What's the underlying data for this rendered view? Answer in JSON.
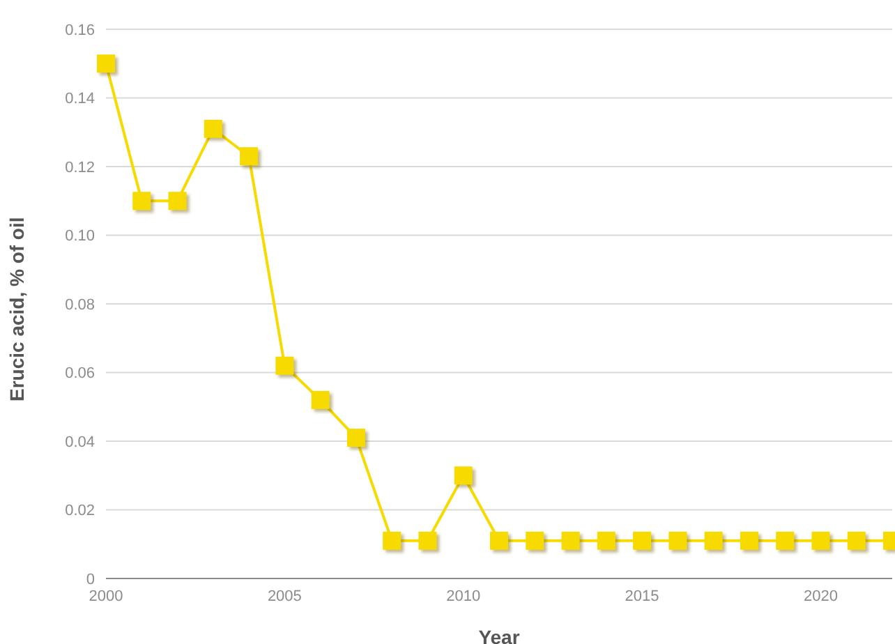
{
  "chart_data": {
    "type": "line",
    "xlabel": "Year",
    "ylabel": "Erucic acid, % of oil",
    "x": [
      2000,
      2001,
      2002,
      2003,
      2004,
      2005,
      2006,
      2007,
      2008,
      2009,
      2010,
      2011,
      2012,
      2013,
      2014,
      2015,
      2016,
      2017,
      2018,
      2019,
      2020,
      2021,
      2022
    ],
    "series": [
      {
        "color": "#f7da00",
        "values": [
          0.15,
          0.11,
          0.11,
          0.131,
          0.123,
          0.062,
          0.052,
          0.041,
          0.011,
          0.011,
          0.03,
          0.011,
          0.011,
          0.011,
          0.011,
          0.011,
          0.011,
          0.011,
          0.011,
          0.011,
          0.011,
          0.011,
          0.011
        ]
      }
    ],
    "xlim": [
      2000,
      2022
    ],
    "xticks": [
      2000,
      2005,
      2010,
      2015,
      2020
    ],
    "ylim": [
      0,
      0.16
    ],
    "yticks": [
      0,
      0.02,
      0.04,
      0.06,
      0.08,
      {
        "value": 0.1,
        "label": "0.10"
      },
      0.12,
      0.14,
      0.16
    ],
    "grid": "y",
    "marker": "square",
    "line_style": "solid",
    "legend": false
  }
}
